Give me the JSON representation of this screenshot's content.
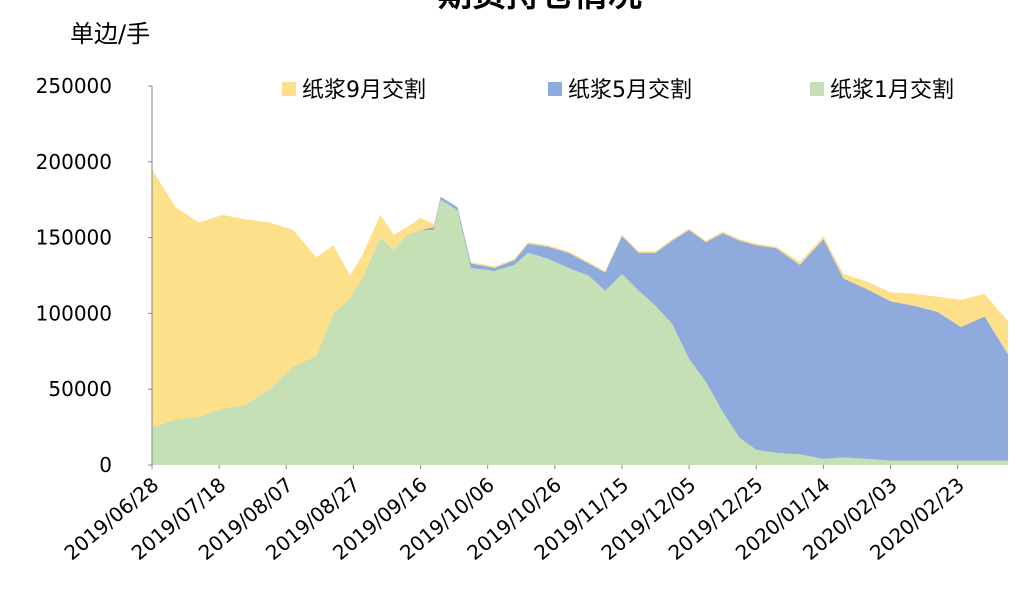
{
  "chart_data": {
    "type": "stacked-area",
    "title": "期货持仓情况",
    "y_label": "单边/手",
    "x": [
      "2019/06/28",
      "2019/07/05",
      "2019/07/12",
      "2019/07/19",
      "2019/07/26",
      "2019/08/02",
      "2019/08/09",
      "2019/08/16",
      "2019/08/21",
      "2019/08/26",
      "2019/08/30",
      "2019/09/04",
      "2019/09/08",
      "2019/09/12",
      "2019/09/16",
      "2019/09/20",
      "2019/09/22",
      "2019/09/27",
      "2019/10/01",
      "2019/10/08",
      "2019/10/14",
      "2019/10/18",
      "2019/10/24",
      "2019/10/30",
      "2019/11/05",
      "2019/11/10",
      "2019/11/15",
      "2019/11/20",
      "2019/11/25",
      "2019/11/30",
      "2019/12/05",
      "2019/12/10",
      "2019/12/15",
      "2019/12/20",
      "2019/12/25",
      "2019/12/31",
      "2020/01/07",
      "2020/01/14",
      "2020/01/20",
      "2020/01/27",
      "2020/02/03",
      "2020/02/10",
      "2020/02/17",
      "2020/02/24",
      "2020/03/02",
      "2020/03/09"
    ],
    "series": [
      {
        "name": "纸浆9月交割",
        "color": "#ffe08a",
        "values": [
          170000,
          140000,
          128000,
          128000,
          122000,
          110000,
          90000,
          65000,
          45000,
          15000,
          15000,
          15000,
          10000,
          5000,
          8000,
          2000,
          0,
          0,
          1000,
          1000,
          1000,
          1000,
          1000,
          1000,
          1000,
          1000,
          1000,
          1000,
          1000,
          1000,
          1000,
          1000,
          1000,
          1000,
          1000,
          1000,
          2000,
          2000,
          3000,
          5000,
          6000,
          8000,
          10000,
          18000,
          15000,
          22000
        ]
      },
      {
        "name": "纸浆5月交割",
        "color": "#8faadc",
        "values": [
          0,
          0,
          0,
          0,
          0,
          0,
          0,
          0,
          0,
          0,
          0,
          0,
          0,
          0,
          0,
          2000,
          2000,
          2000,
          3000,
          2000,
          3000,
          6000,
          8000,
          10000,
          8000,
          12000,
          25000,
          25000,
          35000,
          55000,
          85000,
          92000,
          118000,
          130000,
          135000,
          135000,
          125000,
          145000,
          118000,
          112000,
          105000,
          102000,
          98000,
          88000,
          95000,
          70000
        ]
      },
      {
        "name": "纸浆1月交割",
        "color": "#c5e0b4",
        "values": [
          25000,
          30000,
          32000,
          37000,
          40000,
          50000,
          65000,
          72000,
          100000,
          110000,
          125000,
          150000,
          142000,
          152000,
          155000,
          155000,
          175000,
          168000,
          130000,
          128000,
          132000,
          140000,
          136000,
          130000,
          125000,
          115000,
          126000,
          115000,
          105000,
          93000,
          70000,
          55000,
          35000,
          18000,
          10000,
          8000,
          7000,
          4000,
          5000,
          4000,
          3000,
          3000,
          3000,
          3000,
          3000,
          3000
        ]
      }
    ],
    "xlim": [
      "2019/06/28",
      "2020/03/09"
    ],
    "xticks": [
      "2019/06/28",
      "2019/07/18",
      "2019/08/07",
      "2019/08/27",
      "2019/09/16",
      "2019/10/06",
      "2019/10/26",
      "2019/11/15",
      "2019/12/05",
      "2019/12/25",
      "2020/01/14",
      "2020/02/03",
      "2020/02/23"
    ],
    "ylim": [
      0,
      250000
    ],
    "yticks": [
      0,
      50000,
      100000,
      150000,
      200000,
      250000
    ],
    "legend": "top"
  }
}
